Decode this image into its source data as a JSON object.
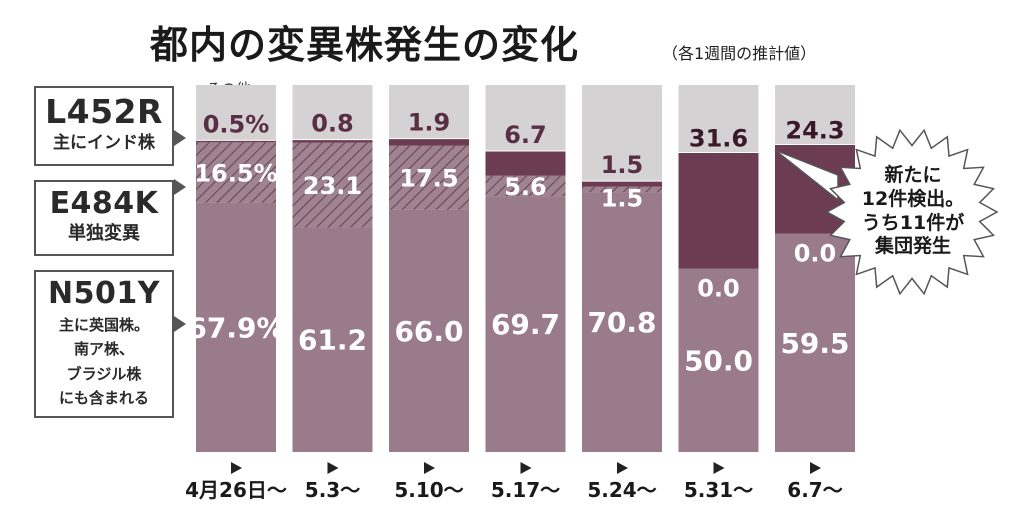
{
  "title": "都内の変異株発生の変化",
  "title_note": "（各1週間の推計値）",
  "other_label": "その他",
  "legend": {
    "l452r": {
      "code": "L452R",
      "desc": "主にインド株"
    },
    "e484k": {
      "code": "E484K",
      "desc": "単独変異"
    },
    "n501y": {
      "code": "N501Y",
      "desc_lines": [
        "主に英国株。",
        "南ア株、",
        "ブラジル株",
        "にも含まれる"
      ]
    }
  },
  "callout": {
    "lines": [
      "新たに",
      "12件検出。",
      "うち11件が",
      "集団発生"
    ]
  },
  "colors": {
    "n501y": "#9a7b8b",
    "e484k": "#a08390",
    "e484k_hatch": "#6e4c5e",
    "l452r": "#6b3c52",
    "other": "#d4d2d3"
  },
  "chart_data": {
    "type": "bar",
    "stacked": true,
    "categories": [
      "4月26日～",
      "5.3～",
      "5.10～",
      "5.17～",
      "5.24～",
      "5.31～",
      "6.7～"
    ],
    "series": [
      {
        "name": "N501Y",
        "values": [
          67.9,
          61.2,
          66.0,
          69.7,
          70.8,
          50.0,
          59.5
        ],
        "labels": [
          "67.9%",
          "61.2",
          "66.0",
          "69.7",
          "70.8",
          "50.0",
          "59.5"
        ]
      },
      {
        "name": "E484K",
        "values": [
          16.5,
          23.1,
          17.5,
          5.6,
          1.5,
          0.0,
          0.0
        ],
        "labels": [
          "16.5%",
          "23.1",
          "17.5",
          "5.6",
          "1.5",
          "0.0",
          "0.0"
        ]
      },
      {
        "name": "L452R",
        "values": [
          0.5,
          0.8,
          1.9,
          6.7,
          1.5,
          31.6,
          24.3
        ],
        "labels": [
          "0.5%",
          "0.8",
          "1.9",
          "6.7",
          "1.5",
          "31.6",
          "24.3"
        ]
      }
    ],
    "ylim": [
      0,
      100
    ]
  }
}
